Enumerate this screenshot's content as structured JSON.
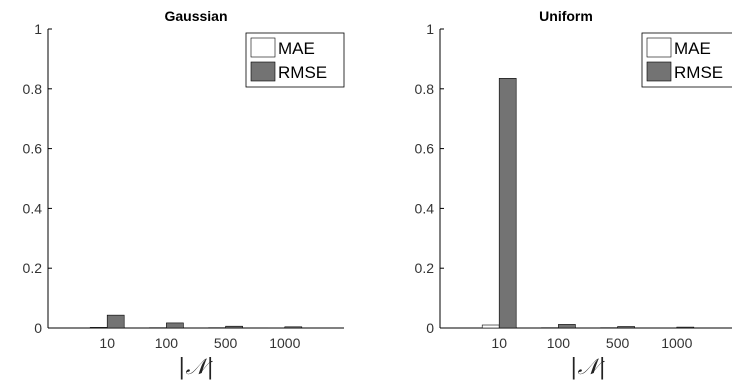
{
  "chart_data": [
    {
      "type": "bar",
      "title": "Gaussian",
      "xlabel": "|𝒩|",
      "ylabel": "",
      "categories": [
        "10",
        "100",
        "500",
        "1000"
      ],
      "series": [
        {
          "name": "MAE",
          "color": "#ffffff",
          "values": [
            0.002,
            0.001,
            0.001,
            0.0005
          ]
        },
        {
          "name": "RMSE",
          "color": "#737373",
          "values": [
            0.043,
            0.017,
            0.006,
            0.004
          ]
        }
      ],
      "ylim": [
        0,
        1
      ],
      "yticks": [
        "0",
        "0.2",
        "0.4",
        "0.6",
        "0.8",
        "1"
      ],
      "legend": "top-right",
      "grid": false
    },
    {
      "type": "bar",
      "title": "Uniform",
      "xlabel": "|𝒩|",
      "ylabel": "",
      "categories": [
        "10",
        "100",
        "500",
        "1000"
      ],
      "series": [
        {
          "name": "MAE",
          "color": "#ffffff",
          "values": [
            0.01,
            0.001,
            0.001,
            0.0005
          ]
        },
        {
          "name": "RMSE",
          "color": "#737373",
          "values": [
            0.835,
            0.012,
            0.005,
            0.003
          ]
        }
      ],
      "ylim": [
        0,
        1
      ],
      "yticks": [
        "0",
        "0.2",
        "0.4",
        "0.6",
        "0.8",
        "1"
      ],
      "legend": "top-right",
      "grid": false
    }
  ]
}
